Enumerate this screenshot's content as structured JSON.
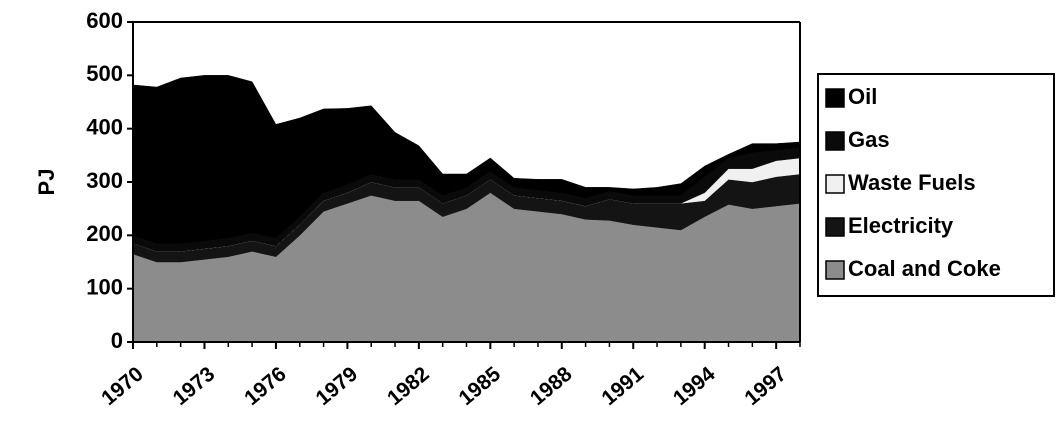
{
  "chart_data": {
    "type": "stacked_area",
    "y_label": "PJ",
    "x": [
      1970,
      1971,
      1972,
      1973,
      1974,
      1975,
      1976,
      1977,
      1978,
      1979,
      1980,
      1981,
      1982,
      1983,
      1984,
      1985,
      1986,
      1987,
      1988,
      1989,
      1990,
      1991,
      1992,
      1993,
      1994,
      1995,
      1996,
      1997,
      1998
    ],
    "xlim": [
      1970,
      1998
    ],
    "xticks": [
      1970,
      1973,
      1976,
      1979,
      1982,
      1985,
      1988,
      1991,
      1994,
      1997
    ],
    "ylim": [
      0,
      600
    ],
    "yticks": [
      0,
      100,
      200,
      300,
      400,
      500,
      600
    ],
    "legend": "right",
    "series": [
      {
        "name": "Coal and Coke",
        "color": "#8c8c8c",
        "values": [
          165,
          150,
          150,
          155,
          160,
          170,
          160,
          200,
          245,
          260,
          275,
          265,
          265,
          235,
          250,
          280,
          250,
          245,
          240,
          230,
          228,
          220,
          215,
          210,
          235,
          258,
          250,
          255,
          260
        ]
      },
      {
        "name": "Electricity",
        "color": "#141414",
        "values": [
          20,
          20,
          20,
          20,
          20,
          20,
          20,
          20,
          20,
          20,
          25,
          25,
          25,
          25,
          25,
          25,
          25,
          25,
          25,
          25,
          40,
          40,
          45,
          50,
          30,
          47,
          50,
          55,
          55
        ]
      },
      {
        "name": "Waste Fuels",
        "color": "#f0f0f0",
        "values": [
          0,
          0,
          0,
          0,
          0,
          0,
          0,
          0,
          0,
          0,
          0,
          0,
          0,
          0,
          0,
          0,
          0,
          0,
          0,
          0,
          0,
          0,
          0,
          0,
          15,
          20,
          25,
          30,
          30
        ]
      },
      {
        "name": "Gas",
        "color": "#0a0a0a",
        "values": [
          15,
          15,
          15,
          15,
          15,
          15,
          15,
          15,
          15,
          15,
          15,
          15,
          15,
          15,
          15,
          15,
          15,
          15,
          15,
          15,
          15,
          15,
          15,
          15,
          30,
          20,
          30,
          20,
          20
        ]
      },
      {
        "name": "Oil",
        "color": "#000000",
        "values": [
          282,
          293,
          310,
          310,
          305,
          283,
          213,
          185,
          157,
          143,
          128,
          88,
          63,
          40,
          25,
          25,
          17,
          20,
          25,
          20,
          7,
          12,
          15,
          22,
          20,
          7,
          17,
          12,
          10
        ]
      }
    ]
  }
}
